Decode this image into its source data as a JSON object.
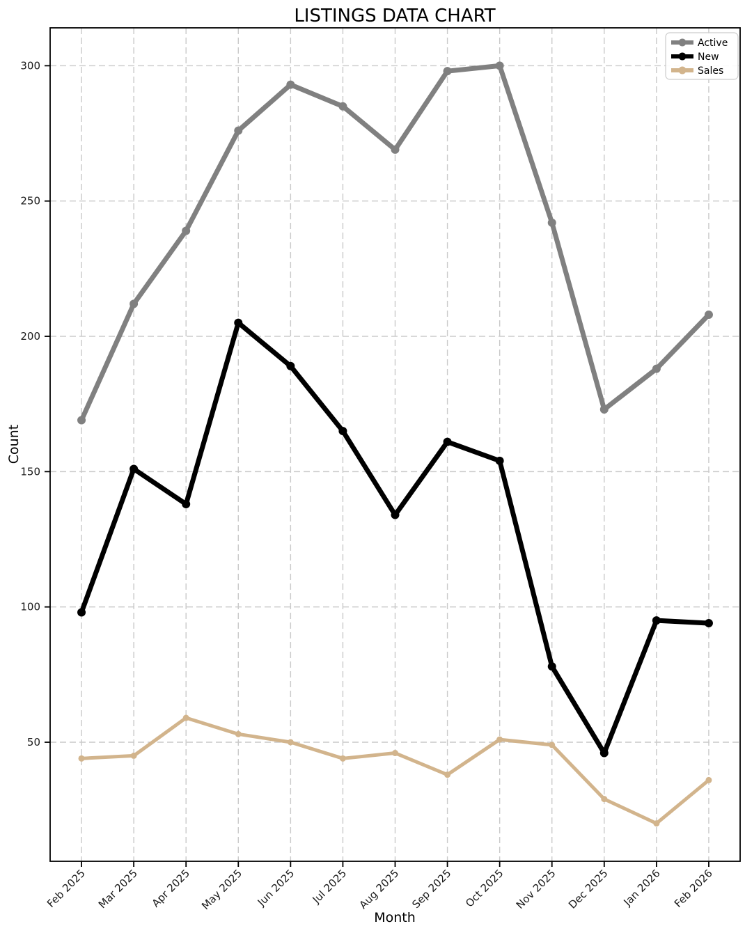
{
  "title": "LISTINGS DATA CHART",
  "chart_data": {
    "type": "line",
    "title": "LISTINGS DATA CHART",
    "xlabel": "Month",
    "ylabel": "Count",
    "categories": [
      "Feb 2025",
      "Mar 2025",
      "Apr 2025",
      "May 2025",
      "Jun 2025",
      "Jul 2025",
      "Aug 2025",
      "Sep 2025",
      "Oct 2025",
      "Nov 2025",
      "Dec 2025",
      "Jan 2026",
      "Feb 2026"
    ],
    "series": [
      {
        "name": "Active",
        "color": "#808080",
        "line_width": 7,
        "values": [
          169,
          212,
          239,
          276,
          293,
          285,
          269,
          298,
          300,
          242,
          173,
          188,
          208
        ]
      },
      {
        "name": "New",
        "color": "#000000",
        "line_width": 7,
        "values": [
          98,
          151,
          138,
          205,
          189,
          165,
          134,
          161,
          154,
          78,
          46,
          95,
          94
        ]
      },
      {
        "name": "Sales",
        "color": "#d2b48c",
        "line_width": 5,
        "values": [
          44,
          45,
          59,
          53,
          50,
          44,
          46,
          38,
          51,
          49,
          29,
          20,
          36
        ]
      }
    ],
    "yticks": [
      50,
      100,
      150,
      200,
      250,
      300
    ],
    "ylim": [
      6,
      314
    ],
    "grid": true,
    "grid_color": "#c9c9c9",
    "legend_position": "upper right",
    "marker": "o"
  }
}
